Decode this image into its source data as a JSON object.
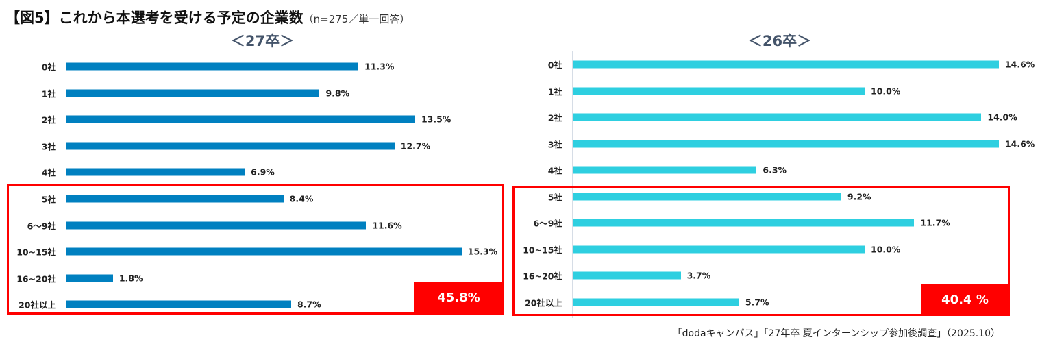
{
  "title": "【図5】これから本選考を受ける予定の企業数",
  "note": "（n=275／単一回答）",
  "source": "「dodaキャンパス」「27年卒 夏インターンシップ参加後調査」（2025.10）",
  "chart_data": [
    {
      "type": "bar",
      "orientation": "horizontal",
      "title": "＜27卒＞",
      "color": "#0080c0",
      "categories": [
        "0社",
        "1社",
        "2社",
        "3社",
        "4社",
        "5社",
        "6〜9社",
        "10~15社",
        "16~20社",
        "20社以上"
      ],
      "values": [
        11.3,
        9.8,
        13.5,
        12.7,
        6.9,
        8.4,
        11.6,
        15.3,
        1.8,
        8.7
      ],
      "labels": [
        "11.3%",
        "9.8%",
        "13.5%",
        "12.7%",
        "6.9%",
        "8.4%",
        "11.6%",
        "15.3%",
        "1.8%",
        "8.7%"
      ],
      "highlight": {
        "from": "5社",
        "to": "20社以上",
        "total": "45.8%"
      }
    },
    {
      "type": "bar",
      "orientation": "horizontal",
      "title": "＜26卒＞",
      "color": "#2ecfe0",
      "categories": [
        "0社",
        "1社",
        "2社",
        "3社",
        "4社",
        "5社",
        "6〜9社",
        "10~15社",
        "16~20社",
        "20社以上"
      ],
      "values": [
        14.6,
        10.0,
        14.0,
        14.6,
        6.3,
        9.2,
        11.7,
        10.0,
        3.7,
        5.7
      ],
      "labels": [
        "14.6%",
        "10.0%",
        "14.0%",
        "14.6%",
        "6.3%",
        "9.2%",
        "11.7%",
        "10.0%",
        "3.7%",
        "5.7%"
      ],
      "highlight": {
        "from": "5社",
        "to": "20社以上",
        "total": "40.4 %"
      }
    }
  ]
}
